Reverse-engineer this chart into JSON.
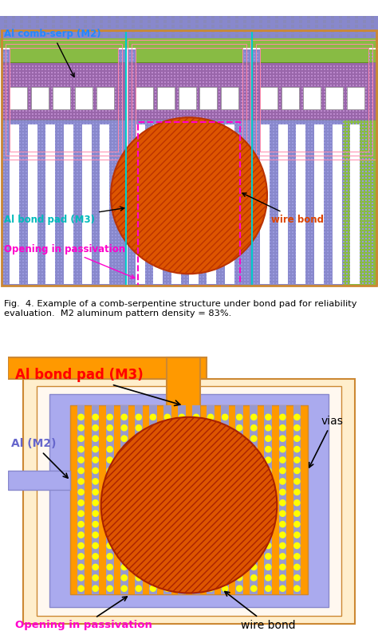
{
  "fig_width": 4.74,
  "fig_height": 8.01,
  "caption": "Fig.  4. Example of a comb-serpentine structure under bond pad for reliability\nevaluation.  M2 aluminum pattern density = 83%.",
  "colors": {
    "blue_bg": "#8888cc",
    "blue_light": "#aaaadd",
    "blue_dot": "#8888bb",
    "green": "#88bb44",
    "orange_border": "#cc8833",
    "orange_fill": "#ff9900",
    "red_circle": "#dd5500",
    "magenta": "#ff00cc",
    "cyan": "#00bbbb",
    "pink": "#ff88aa",
    "purple_pad": "#9966aa",
    "white": "#ffffff",
    "via_yellow": "#ffff00",
    "via_blue": "#9999cc",
    "al_m2": "#aaaaee"
  }
}
